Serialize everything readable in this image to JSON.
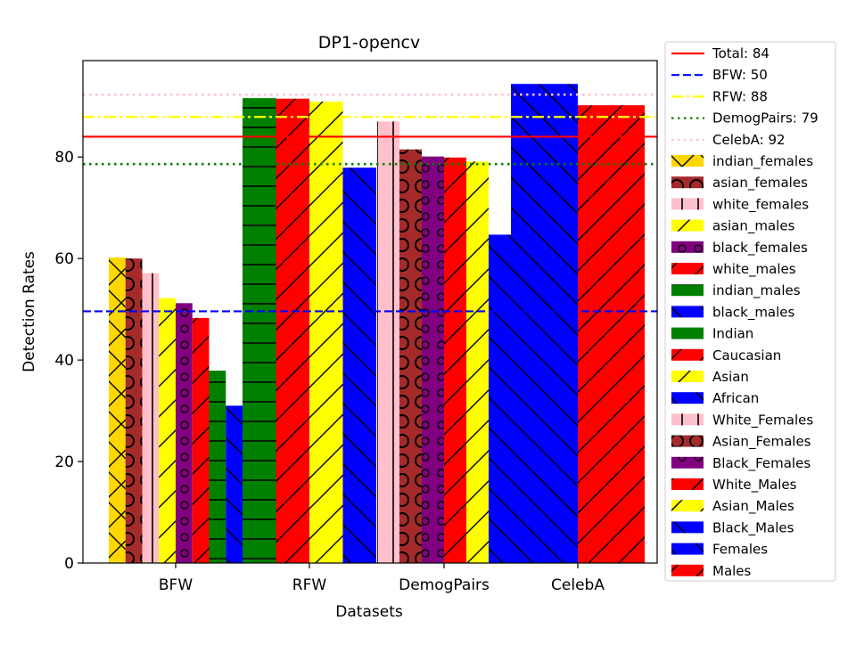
{
  "chart_data": {
    "type": "bar",
    "title": "DP1-opencv",
    "xlabel": "Datasets",
    "ylabel": "Detection Rates",
    "categories": [
      "BFW",
      "RFW",
      "DemogPairs",
      "CelebA"
    ],
    "ylim": [
      0,
      99
    ],
    "yticks": [
      0,
      20,
      40,
      60,
      80
    ],
    "grid": false,
    "legend_position": "right-outside",
    "reference_lines": [
      {
        "label": "Total: 84",
        "value": 84,
        "color": "#ff0000",
        "style": "solid"
      },
      {
        "label": "BFW: 50",
        "value": 49.6,
        "color": "#0000ff",
        "style": "dashed"
      },
      {
        "label": "RFW: 88",
        "value": 87.9,
        "color": "#ffff00",
        "style": "dashdot"
      },
      {
        "label": "DemogPairs: 79",
        "value": 78.6,
        "color": "#008000",
        "style": "dotted"
      },
      {
        "label": "CelebA: 92",
        "value": 92.3,
        "color": "#ffc0cb",
        "style": "dotted"
      }
    ],
    "groups": [
      {
        "category": "BFW",
        "bars": [
          {
            "name": "indian_females",
            "value": 60.2,
            "color": "#ffd700",
            "hatch": "x"
          },
          {
            "name": "asian_females",
            "value": 60.0,
            "color": "#a52a2a",
            "hatch": "O"
          },
          {
            "name": "white_females",
            "value": 57.1,
            "color": "#ffc0cb",
            "hatch": "|"
          },
          {
            "name": "asian_males",
            "value": 52.2,
            "color": "#ffff00",
            "hatch": "/"
          },
          {
            "name": "black_females",
            "value": 51.2,
            "color": "#800080",
            "hatch": "o"
          },
          {
            "name": "white_males",
            "value": 48.3,
            "color": "#ff0000",
            "hatch": "/"
          },
          {
            "name": "indian_males",
            "value": 37.9,
            "color": "#008000",
            "hatch": "-"
          },
          {
            "name": "black_males",
            "value": 31.0,
            "color": "#0000ff",
            "hatch": "\\"
          }
        ]
      },
      {
        "category": "RFW",
        "bars": [
          {
            "name": "Indian",
            "value": 91.6,
            "color": "#008000",
            "hatch": "-"
          },
          {
            "name": "Caucasian",
            "value": 91.5,
            "color": "#ff0000",
            "hatch": "/"
          },
          {
            "name": "Asian",
            "value": 90.9,
            "color": "#ffff00",
            "hatch": "/"
          },
          {
            "name": "African",
            "value": 77.9,
            "color": "#0000ff",
            "hatch": "\\"
          }
        ]
      },
      {
        "category": "DemogPairs",
        "bars": [
          {
            "name": "White_Females",
            "value": 87.0,
            "color": "#ffc0cb",
            "hatch": "|"
          },
          {
            "name": "Asian_Females",
            "value": 81.5,
            "color": "#a52a2a",
            "hatch": "O"
          },
          {
            "name": "Black_Females",
            "value": 80.1,
            "color": "#800080",
            "hatch": "o"
          },
          {
            "name": "White_Males",
            "value": 79.9,
            "color": "#ff0000",
            "hatch": "/"
          },
          {
            "name": "Asian_Males",
            "value": 79.1,
            "color": "#ffff00",
            "hatch": "/"
          },
          {
            "name": "Black_Males",
            "value": 64.7,
            "color": "#0000ff",
            "hatch": "\\"
          }
        ]
      },
      {
        "category": "CelebA",
        "bars": [
          {
            "name": "Females",
            "value": 94.4,
            "color": "#0000ff",
            "hatch": "\\"
          },
          {
            "name": "Males",
            "value": 90.2,
            "color": "#ff0000",
            "hatch": "/"
          }
        ]
      }
    ]
  }
}
